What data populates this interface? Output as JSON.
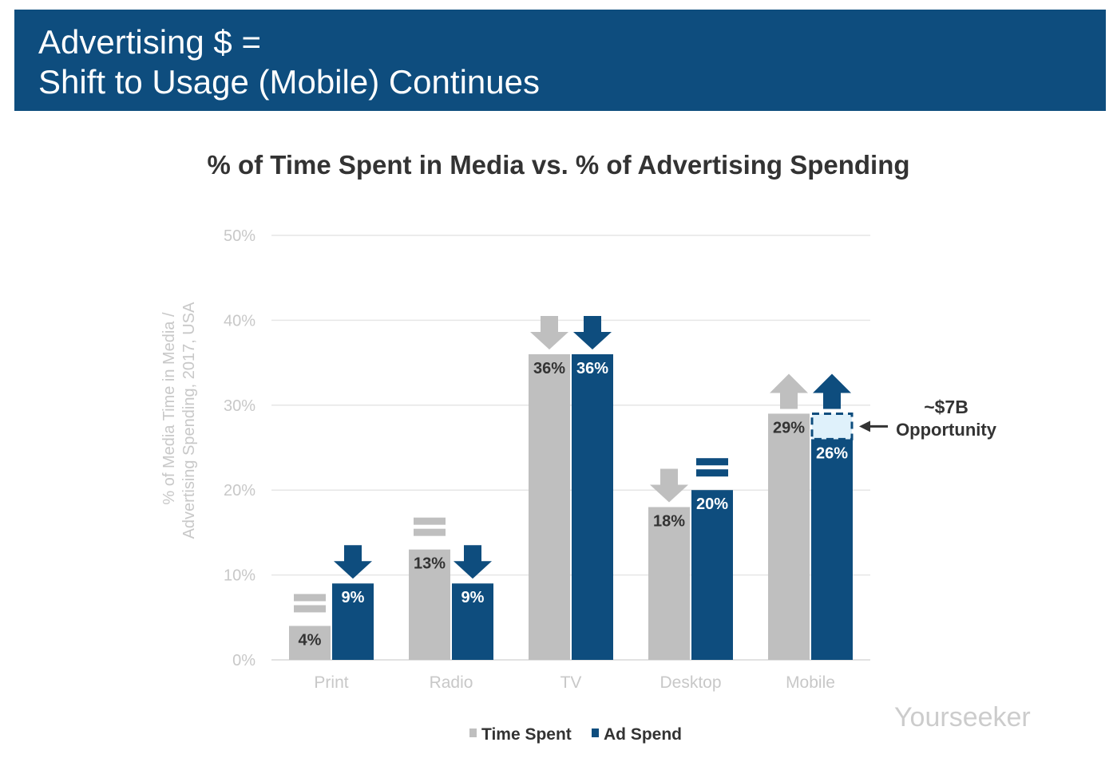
{
  "header": {
    "line1": "Advertising $ =",
    "line2": "Shift to Usage (Mobile) Continues"
  },
  "watermark": "Yourseeker",
  "chart_data": {
    "type": "bar",
    "title": "% of Time Spent in Media vs. % of Advertising Spending",
    "ylabel_line1": "% of Media Time in Media /",
    "ylabel_line2": "Advertising Spending, 2017, USA",
    "ylim": [
      0,
      50
    ],
    "yticks": [
      "0%",
      "10%",
      "20%",
      "30%",
      "40%",
      "50%"
    ],
    "grid": true,
    "legend": "bottom",
    "categories": [
      "Print",
      "Radio",
      "TV",
      "Desktop",
      "Mobile"
    ],
    "series": [
      {
        "name": "Time Spent",
        "color": "#bfbfbf",
        "values": [
          4,
          13,
          36,
          18,
          29
        ],
        "labels": [
          "4%",
          "13%",
          "36%",
          "18%",
          "29%"
        ],
        "trend": [
          "equal",
          "equal",
          "down",
          "down",
          "up"
        ]
      },
      {
        "name": "Ad Spend",
        "color": "#0e4d7e",
        "values": [
          9,
          9,
          36,
          20,
          26
        ],
        "labels": [
          "9%",
          "9%",
          "36%",
          "20%",
          "26%"
        ],
        "trend": [
          "down",
          "down",
          "down",
          "equal",
          "up"
        ]
      }
    ],
    "annotation": {
      "line1": "~$7B",
      "line2": "Opportunity",
      "gap_from": 26,
      "gap_to": 29,
      "gap_color": "#dff1fb"
    }
  }
}
